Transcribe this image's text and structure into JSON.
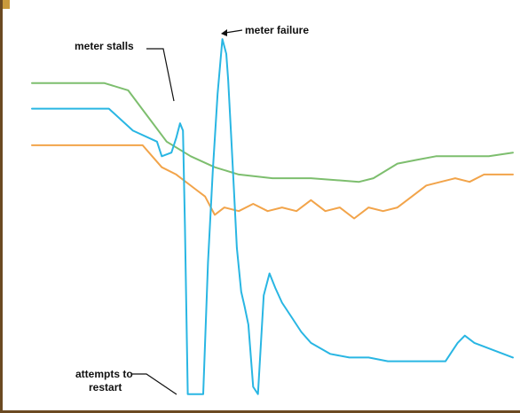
{
  "chart_data": {
    "type": "line",
    "title": "",
    "xlabel": "",
    "ylabel": "",
    "grid": false,
    "xlim": [
      0,
      100
    ],
    "ylim": [
      0,
      100
    ],
    "series": [
      {
        "color": "#7dbe6e",
        "x": [
          0,
          15,
          20,
          24,
          28,
          33,
          38,
          43,
          50,
          58,
          68,
          71,
          76,
          80,
          84,
          90,
          95,
          100
        ],
        "y": [
          87,
          87,
          85,
          78,
          71,
          67,
          64,
          62,
          61,
          61,
          60,
          61,
          65,
          66,
          67,
          67,
          67,
          68
        ]
      },
      {
        "color": "#f2a44a",
        "x": [
          0,
          10,
          23,
          25,
          27,
          30,
          34,
          36,
          38,
          40,
          43,
          46,
          49,
          52,
          55,
          58,
          61,
          64,
          67,
          70,
          73,
          76,
          79,
          82,
          85,
          88,
          91,
          94,
          97,
          100
        ],
        "y": [
          70,
          70,
          70,
          67,
          64,
          62,
          58,
          56,
          51,
          53,
          52,
          54,
          52,
          53,
          52,
          55,
          52,
          53,
          50,
          53,
          52,
          53,
          56,
          59,
          60,
          61,
          60,
          62,
          62,
          62
        ]
      },
      {
        "color": "#29b6e3",
        "x": [
          0,
          16,
          21,
          26,
          27,
          29,
          30,
          30.8,
          31.4,
          31.8,
          32.4,
          33.4,
          34.4,
          35.6,
          36.6,
          37.6,
          38.6,
          39.6,
          40.4,
          40.8,
          41.4,
          42,
          42.6,
          43.5,
          44.2,
          45,
          46,
          47,
          48.2,
          49.4,
          50.6,
          52,
          54,
          56,
          58,
          62,
          66,
          70,
          74,
          78,
          82,
          85,
          86,
          87,
          88.5,
          90,
          92,
          94,
          96,
          98,
          100
        ],
        "y": [
          80,
          80,
          74,
          71,
          67,
          68,
          72,
          76,
          74,
          48,
          2,
          2,
          2,
          2,
          38,
          63,
          84,
          99,
          95,
          88,
          73,
          58,
          42,
          30,
          26,
          21,
          4,
          2,
          29,
          35,
          31,
          27,
          23,
          19,
          16,
          13,
          12,
          12,
          11,
          11,
          11,
          11,
          11,
          13,
          16,
          18,
          16,
          15,
          14,
          13,
          12
        ]
      }
    ],
    "annotations": [
      {
        "text": "meter stalls"
      },
      {
        "text": "meter failure"
      },
      {
        "text": "attempts to"
      },
      {
        "text": "restart"
      }
    ]
  }
}
